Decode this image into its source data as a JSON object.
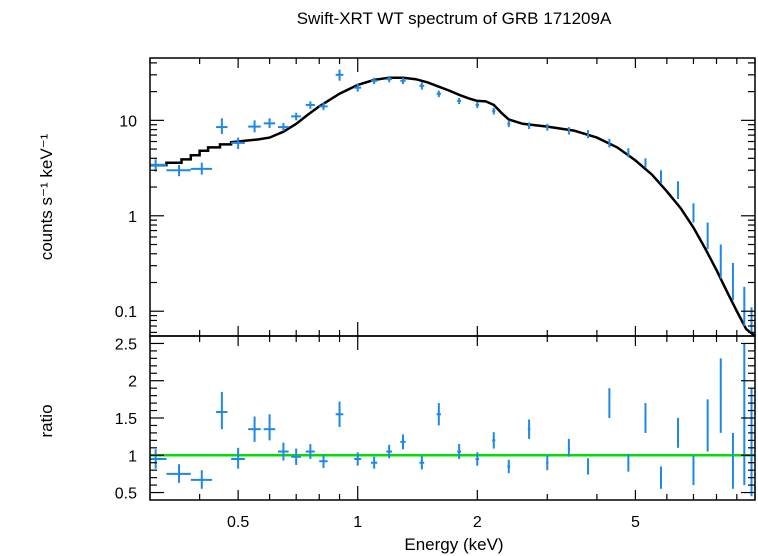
{
  "chart_data": [
    {
      "type": "scatter",
      "title": "Swift-XRT WT spectrum of GRB 171209A",
      "xlabel": "Energy (keV)",
      "ylabel": "counts s⁻¹ keV⁻¹",
      "xscale": "log",
      "yscale": "log",
      "xlim": [
        0.3,
        10
      ],
      "ylim": [
        0.055,
        45
      ],
      "xticks": [
        0.5,
        1,
        2,
        5
      ],
      "xtick_labels": [
        "0.5",
        "1",
        "2",
        "5"
      ],
      "yticks": [
        0.1,
        1,
        10
      ],
      "ytick_labels": [
        "0.1",
        "1",
        "10"
      ],
      "colors": {
        "data": "#1e88e5",
        "model": "#000000"
      },
      "series": [
        {
          "kind": "data",
          "points": [
            {
              "x": 0.31,
              "y": 3.4,
              "xerr": [
                0.3,
                0.33
              ],
              "yerr": [
                2.9,
                3.9
              ]
            },
            {
              "x": 0.355,
              "y": 3.0,
              "xerr": [
                0.33,
                0.38
              ],
              "yerr": [
                2.6,
                3.4
              ]
            },
            {
              "x": 0.405,
              "y": 3.1,
              "xerr": [
                0.38,
                0.43
              ],
              "yerr": [
                2.7,
                3.6
              ]
            },
            {
              "x": 0.455,
              "y": 8.5,
              "xerr": [
                0.44,
                0.47
              ],
              "yerr": [
                7.2,
                10.5
              ]
            },
            {
              "x": 0.5,
              "y": 5.8,
              "xerr": [
                0.48,
                0.52
              ],
              "yerr": [
                5.0,
                6.6
              ]
            },
            {
              "x": 0.55,
              "y": 8.6,
              "xerr": [
                0.53,
                0.57
              ],
              "yerr": [
                7.5,
                10.0
              ]
            },
            {
              "x": 0.6,
              "y": 9.3,
              "xerr": [
                0.58,
                0.62
              ],
              "yerr": [
                8.3,
                10.5
              ]
            },
            {
              "x": 0.65,
              "y": 8.5,
              "xerr": [
                0.63,
                0.67
              ],
              "yerr": [
                7.7,
                9.4
              ]
            },
            {
              "x": 0.7,
              "y": 11.0,
              "xerr": [
                0.68,
                0.72
              ],
              "yerr": [
                10.0,
                12.0
              ]
            },
            {
              "x": 0.76,
              "y": 14.5,
              "xerr": [
                0.74,
                0.78
              ],
              "yerr": [
                13.2,
                15.8
              ]
            },
            {
              "x": 0.82,
              "y": 14.0,
              "xerr": [
                0.8,
                0.84
              ],
              "yerr": [
                12.8,
                15.3
              ]
            },
            {
              "x": 0.9,
              "y": 30.0,
              "xerr": [
                0.88,
                0.92
              ],
              "yerr": [
                26.0,
                34.0
              ]
            },
            {
              "x": 1.0,
              "y": 22.0,
              "xerr": [
                0.98,
                1.02
              ],
              "yerr": [
                20.0,
                24.0
              ]
            },
            {
              "x": 1.1,
              "y": 26.0,
              "xerr": [
                1.08,
                1.12
              ],
              "yerr": [
                24.0,
                28.0
              ]
            },
            {
              "x": 1.2,
              "y": 27.0,
              "xerr": [
                1.18,
                1.22
              ],
              "yerr": [
                25.0,
                29.0
              ]
            },
            {
              "x": 1.3,
              "y": 26.0,
              "xerr": [
                1.28,
                1.32
              ],
              "yerr": [
                24.0,
                28.0
              ]
            },
            {
              "x": 1.45,
              "y": 23.0,
              "xerr": [
                1.43,
                1.47
              ],
              "yerr": [
                21.0,
                25.0
              ]
            },
            {
              "x": 1.6,
              "y": 19.0,
              "xerr": [
                1.58,
                1.62
              ],
              "yerr": [
                17.5,
                20.5
              ]
            },
            {
              "x": 1.8,
              "y": 16.0,
              "xerr": [
                1.78,
                1.82
              ],
              "yerr": [
                14.8,
                17.2
              ]
            },
            {
              "x": 2.0,
              "y": 14.5,
              "xerr": [
                1.98,
                2.02
              ],
              "yerr": [
                13.4,
                15.6
              ]
            },
            {
              "x": 2.2,
              "y": 12.5,
              "xerr": [
                2.18,
                2.22
              ],
              "yerr": [
                11.5,
                13.5
              ]
            },
            {
              "x": 2.4,
              "y": 9.2,
              "xerr": [
                2.38,
                2.42
              ],
              "yerr": [
                8.5,
                10.0
              ]
            },
            {
              "x": 2.7,
              "y": 8.8,
              "xerr": [
                2.68,
                2.72
              ],
              "yerr": [
                8.1,
                9.5
              ]
            },
            {
              "x": 3.0,
              "y": 8.5,
              "xerr": [
                2.98,
                3.02
              ],
              "yerr": [
                7.8,
                9.2
              ]
            },
            {
              "x": 3.4,
              "y": 7.8,
              "xerr": [
                3.38,
                3.42
              ],
              "yerr": [
                7.1,
                8.5
              ]
            },
            {
              "x": 3.8,
              "y": 7.2,
              "xerr": [
                3.78,
                3.82
              ],
              "yerr": [
                6.5,
                7.9
              ]
            },
            {
              "x": 4.3,
              "y": 5.8,
              "xerr": [
                4.28,
                4.32
              ],
              "yerr": [
                5.2,
                6.4
              ]
            },
            {
              "x": 4.8,
              "y": 4.6,
              "xerr": [
                4.78,
                4.82
              ],
              "yerr": [
                4.1,
                5.1
              ]
            },
            {
              "x": 5.3,
              "y": 3.6,
              "xerr": [
                5.27,
                5.33
              ],
              "yerr": [
                3.2,
                4.0
              ]
            },
            {
              "x": 5.8,
              "y": 2.6,
              "xerr": [
                5.77,
                5.83
              ],
              "yerr": [
                2.2,
                3.0
              ]
            },
            {
              "x": 6.4,
              "y": 1.9,
              "xerr": [
                6.37,
                6.43
              ],
              "yerr": [
                1.5,
                2.3
              ]
            },
            {
              "x": 7.0,
              "y": 1.1,
              "xerr": [
                6.97,
                7.03
              ],
              "yerr": [
                0.85,
                1.35
              ]
            },
            {
              "x": 7.6,
              "y": 0.65,
              "xerr": [
                7.57,
                7.63
              ],
              "yerr": [
                0.45,
                0.85
              ]
            },
            {
              "x": 8.2,
              "y": 0.35,
              "xerr": [
                8.16,
                8.24
              ],
              "yerr": [
                0.22,
                0.5
              ]
            },
            {
              "x": 8.8,
              "y": 0.22,
              "xerr": [
                8.76,
                8.84
              ],
              "yerr": [
                0.13,
                0.32
              ]
            },
            {
              "x": 9.4,
              "y": 0.12,
              "xerr": [
                9.35,
                9.45
              ],
              "yerr": [
                0.07,
                0.18
              ]
            },
            {
              "x": 9.8,
              "y": 0.08,
              "xerr": [
                9.75,
                9.85
              ],
              "yerr": [
                0.06,
                0.11
              ]
            }
          ]
        },
        {
          "kind": "model",
          "x": [
            0.3,
            0.33,
            0.33,
            0.36,
            0.36,
            0.38,
            0.38,
            0.4,
            0.4,
            0.42,
            0.42,
            0.45,
            0.45,
            0.48,
            0.48,
            0.52,
            0.56,
            0.6,
            0.65,
            0.7,
            0.75,
            0.8,
            0.9,
            1.0,
            1.1,
            1.2,
            1.3,
            1.4,
            1.5,
            1.6,
            1.7,
            1.8,
            1.9,
            2.0,
            2.1,
            2.2,
            2.3,
            2.4,
            2.6,
            3.0,
            3.5,
            4.0,
            4.5,
            5.0,
            5.5,
            6.0,
            6.5,
            7.0,
            7.5,
            8.0,
            8.5,
            9.0,
            9.5,
            10.0
          ],
          "y": [
            3.4,
            3.4,
            3.6,
            3.6,
            3.9,
            3.9,
            4.3,
            4.3,
            4.8,
            4.8,
            5.2,
            5.2,
            5.6,
            5.6,
            5.9,
            6.1,
            6.3,
            6.6,
            7.6,
            9.2,
            11.5,
            14.0,
            19.0,
            23.5,
            26.5,
            28.0,
            28.0,
            27.0,
            25.0,
            22.5,
            20.5,
            18.5,
            17.0,
            16.0,
            15.8,
            14.5,
            12.0,
            10.2,
            9.2,
            8.6,
            7.8,
            6.6,
            5.2,
            3.8,
            2.7,
            1.8,
            1.2,
            0.75,
            0.45,
            0.27,
            0.16,
            0.1,
            0.065,
            0.055
          ]
        }
      ]
    },
    {
      "type": "scatter",
      "ylabel": "ratio",
      "xscale": "log",
      "ylim": [
        0.4,
        2.6
      ],
      "yticks": [
        0.5,
        1,
        1.5,
        2,
        2.5
      ],
      "ytick_labels": [
        "0.5",
        "1",
        "1.5",
        "2",
        "2.5"
      ],
      "reference_line": 1,
      "colors": {
        "data": "#1e88e5",
        "reference": "#00e000"
      },
      "points": [
        {
          "x": 0.31,
          "y": 0.95,
          "xerr": [
            0.3,
            0.33
          ],
          "yerr": [
            0.82,
            1.08
          ]
        },
        {
          "x": 0.355,
          "y": 0.75,
          "xerr": [
            0.33,
            0.38
          ],
          "yerr": [
            0.63,
            0.88
          ]
        },
        {
          "x": 0.405,
          "y": 0.67,
          "xerr": [
            0.38,
            0.43
          ],
          "yerr": [
            0.55,
            0.8
          ]
        },
        {
          "x": 0.455,
          "y": 1.58,
          "xerr": [
            0.44,
            0.47
          ],
          "yerr": [
            1.35,
            1.85
          ]
        },
        {
          "x": 0.5,
          "y": 0.95,
          "xerr": [
            0.48,
            0.52
          ],
          "yerr": [
            0.82,
            1.1
          ]
        },
        {
          "x": 0.55,
          "y": 1.35,
          "xerr": [
            0.53,
            0.57
          ],
          "yerr": [
            1.18,
            1.52
          ]
        },
        {
          "x": 0.6,
          "y": 1.35,
          "xerr": [
            0.58,
            0.62
          ],
          "yerr": [
            1.2,
            1.55
          ]
        },
        {
          "x": 0.65,
          "y": 1.05,
          "xerr": [
            0.63,
            0.67
          ],
          "yerr": [
            0.93,
            1.17
          ]
        },
        {
          "x": 0.7,
          "y": 0.98,
          "xerr": [
            0.68,
            0.72
          ],
          "yerr": [
            0.87,
            1.09
          ]
        },
        {
          "x": 0.76,
          "y": 1.05,
          "xerr": [
            0.74,
            0.78
          ],
          "yerr": [
            0.95,
            1.15
          ]
        },
        {
          "x": 0.82,
          "y": 0.92,
          "xerr": [
            0.8,
            0.84
          ],
          "yerr": [
            0.83,
            1.01
          ]
        },
        {
          "x": 0.9,
          "y": 1.55,
          "xerr": [
            0.88,
            0.92
          ],
          "yerr": [
            1.38,
            1.72
          ]
        },
        {
          "x": 1.0,
          "y": 0.95,
          "xerr": [
            0.98,
            1.02
          ],
          "yerr": [
            0.86,
            1.04
          ]
        },
        {
          "x": 1.1,
          "y": 0.9,
          "xerr": [
            1.08,
            1.12
          ],
          "yerr": [
            0.82,
            0.98
          ]
        },
        {
          "x": 1.2,
          "y": 1.05,
          "xerr": [
            1.18,
            1.22
          ],
          "yerr": [
            0.96,
            1.14
          ]
        },
        {
          "x": 1.3,
          "y": 1.18,
          "xerr": [
            1.28,
            1.32
          ],
          "yerr": [
            1.08,
            1.28
          ]
        },
        {
          "x": 1.45,
          "y": 0.9,
          "xerr": [
            1.43,
            1.47
          ],
          "yerr": [
            0.81,
            0.99
          ]
        },
        {
          "x": 1.6,
          "y": 1.55,
          "xerr": [
            1.58,
            1.62
          ],
          "yerr": [
            1.4,
            1.7
          ]
        },
        {
          "x": 1.8,
          "y": 1.05,
          "xerr": [
            1.78,
            1.82
          ],
          "yerr": [
            0.95,
            1.15
          ]
        },
        {
          "x": 2.0,
          "y": 0.95,
          "xerr": [
            1.98,
            2.02
          ],
          "yerr": [
            0.86,
            1.04
          ]
        },
        {
          "x": 2.2,
          "y": 1.2,
          "xerr": [
            2.18,
            2.22
          ],
          "yerr": [
            1.09,
            1.31
          ]
        },
        {
          "x": 2.4,
          "y": 0.85,
          "xerr": [
            2.38,
            2.42
          ],
          "yerr": [
            0.76,
            0.94
          ]
        },
        {
          "x": 2.7,
          "y": 1.35,
          "xerr": [
            2.68,
            2.72
          ],
          "yerr": [
            1.22,
            1.48
          ]
        },
        {
          "x": 3.0,
          "y": 0.9,
          "xerr": [
            2.98,
            3.02
          ],
          "yerr": [
            0.8,
            1.0
          ]
        },
        {
          "x": 3.4,
          "y": 1.1,
          "xerr": [
            3.38,
            3.42
          ],
          "yerr": [
            0.98,
            1.22
          ]
        },
        {
          "x": 3.8,
          "y": 0.85,
          "xerr": [
            3.78,
            3.82
          ],
          "yerr": [
            0.74,
            0.96
          ]
        },
        {
          "x": 4.3,
          "y": 1.7,
          "xerr": [
            4.28,
            4.32
          ],
          "yerr": [
            1.5,
            1.9
          ]
        },
        {
          "x": 4.8,
          "y": 0.9,
          "xerr": [
            4.78,
            4.82
          ],
          "yerr": [
            0.78,
            1.02
          ]
        },
        {
          "x": 5.3,
          "y": 1.5,
          "xerr": [
            5.27,
            5.33
          ],
          "yerr": [
            1.3,
            1.7
          ]
        },
        {
          "x": 5.8,
          "y": 0.7,
          "xerr": [
            5.77,
            5.83
          ],
          "yerr": [
            0.55,
            0.85
          ]
        },
        {
          "x": 6.4,
          "y": 1.3,
          "xerr": [
            6.37,
            6.43
          ],
          "yerr": [
            1.1,
            1.5
          ]
        },
        {
          "x": 7.0,
          "y": 0.8,
          "xerr": [
            6.97,
            7.03
          ],
          "yerr": [
            0.6,
            1.0
          ]
        },
        {
          "x": 7.6,
          "y": 1.4,
          "xerr": [
            7.57,
            7.63
          ],
          "yerr": [
            1.05,
            1.75
          ]
        },
        {
          "x": 8.2,
          "y": 1.8,
          "xerr": [
            8.16,
            8.24
          ],
          "yerr": [
            1.3,
            2.3
          ]
        },
        {
          "x": 8.8,
          "y": 0.9,
          "xerr": [
            8.76,
            8.84
          ],
          "yerr": [
            0.55,
            1.3
          ]
        },
        {
          "x": 9.4,
          "y": 1.5,
          "xerr": [
            9.35,
            9.45
          ],
          "yerr": [
            0.6,
            2.5
          ]
        },
        {
          "x": 9.8,
          "y": 0.7,
          "xerr": [
            9.75,
            9.85
          ],
          "yerr": [
            0.45,
            1.9
          ]
        }
      ]
    }
  ]
}
